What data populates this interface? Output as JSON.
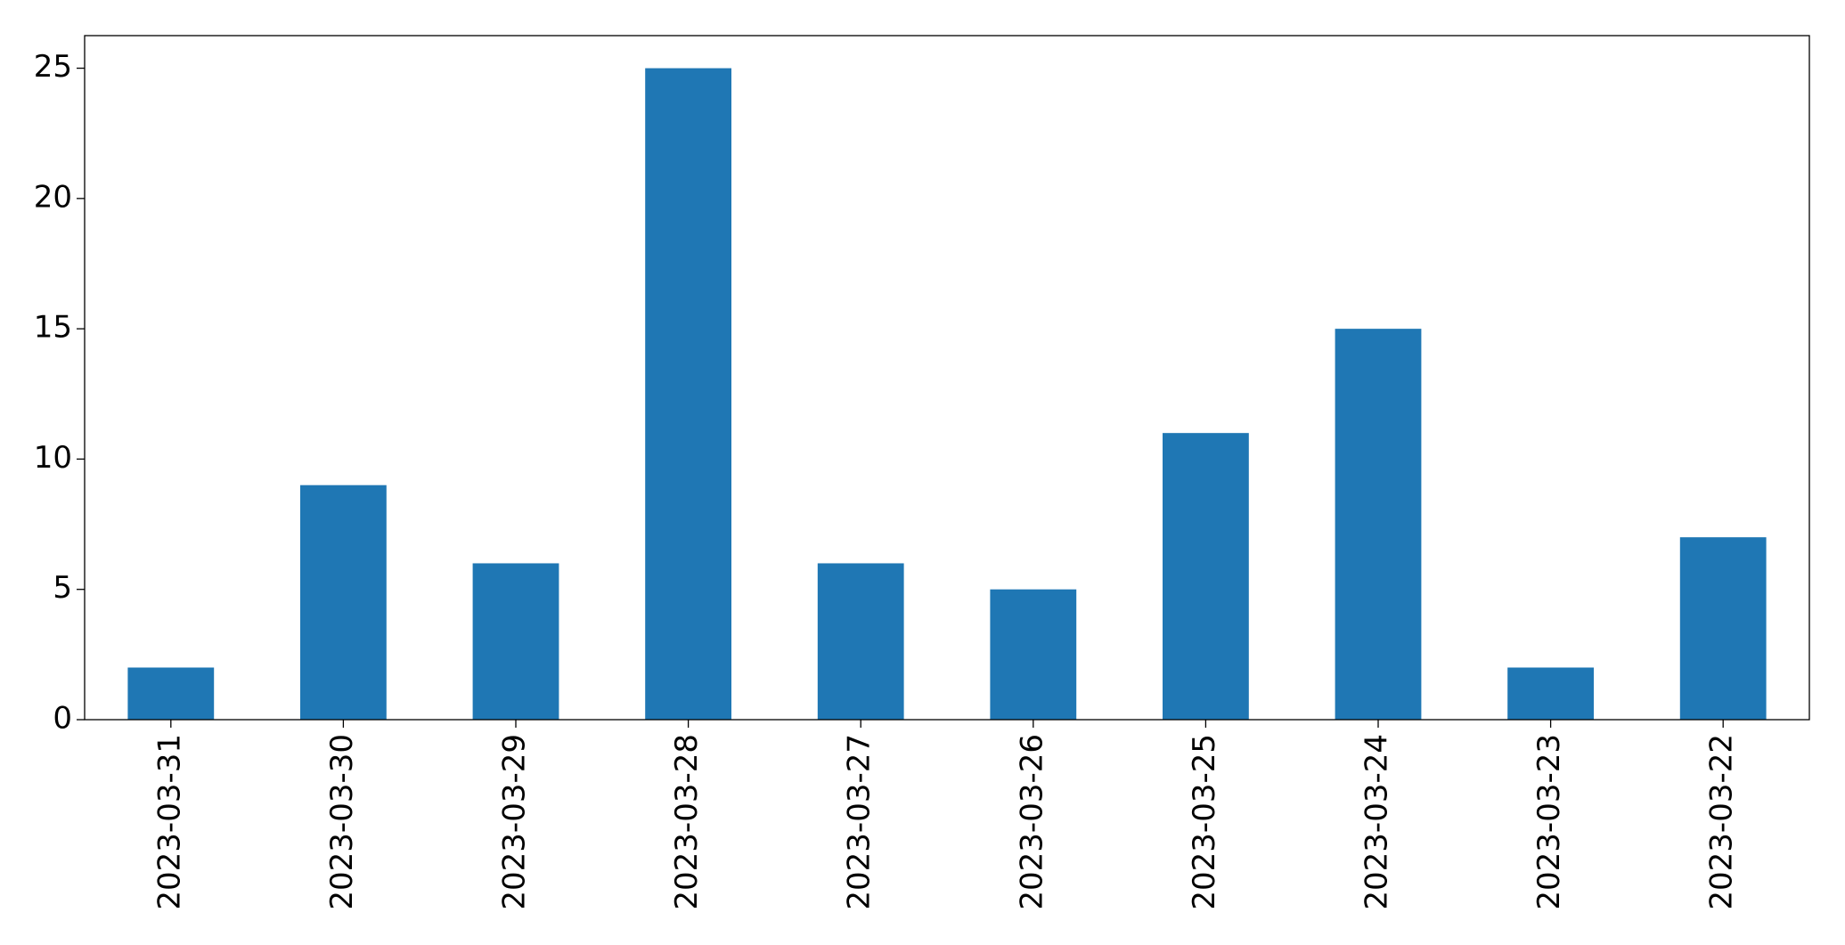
{
  "chart_data": {
    "type": "bar",
    "categories": [
      "2023-03-31",
      "2023-03-30",
      "2023-03-29",
      "2023-03-28",
      "2023-03-27",
      "2023-03-26",
      "2023-03-25",
      "2023-03-24",
      "2023-03-23",
      "2023-03-22"
    ],
    "values": [
      2,
      9,
      6,
      25,
      6,
      5,
      11,
      15,
      2,
      7
    ],
    "color": "#1f77b4",
    "ylim": [
      0,
      26.25
    ],
    "yticks": [
      0,
      5,
      10,
      15,
      20,
      25
    ],
    "grid": false
  }
}
